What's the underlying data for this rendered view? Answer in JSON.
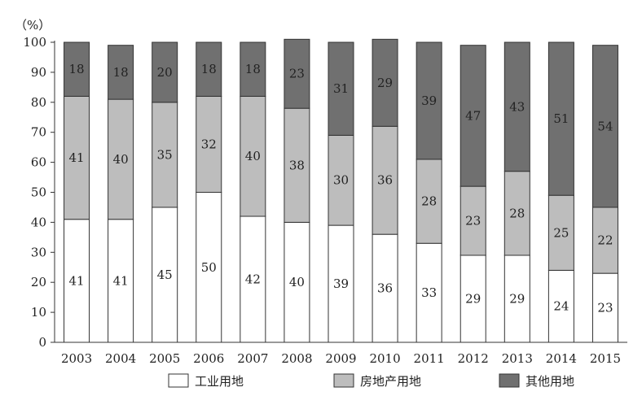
{
  "chart_data": {
    "type": "bar",
    "stacked": true,
    "percent": true,
    "ylabel": "（%）",
    "ylim": [
      0,
      100
    ],
    "yticks": [
      0,
      10,
      20,
      30,
      40,
      50,
      60,
      70,
      80,
      90,
      100
    ],
    "categories": [
      "2003",
      "2004",
      "2005",
      "2006",
      "2007",
      "2008",
      "2009",
      "2010",
      "2011",
      "2012",
      "2013",
      "2014",
      "2015"
    ],
    "legend_position": "bottom",
    "series": [
      {
        "name": "工业用地",
        "color": "#ffffff",
        "values": [
          41,
          41,
          45,
          50,
          42,
          40,
          39,
          36,
          33,
          29,
          29,
          24,
          23
        ]
      },
      {
        "name": "房地产用地",
        "color": "#bdbdbd",
        "values": [
          41,
          40,
          35,
          32,
          40,
          38,
          30,
          36,
          28,
          23,
          28,
          25,
          22
        ]
      },
      {
        "name": "其他用地",
        "color": "#707070",
        "values": [
          18,
          18,
          20,
          18,
          18,
          23,
          31,
          29,
          39,
          47,
          43,
          51,
          54
        ]
      }
    ]
  }
}
